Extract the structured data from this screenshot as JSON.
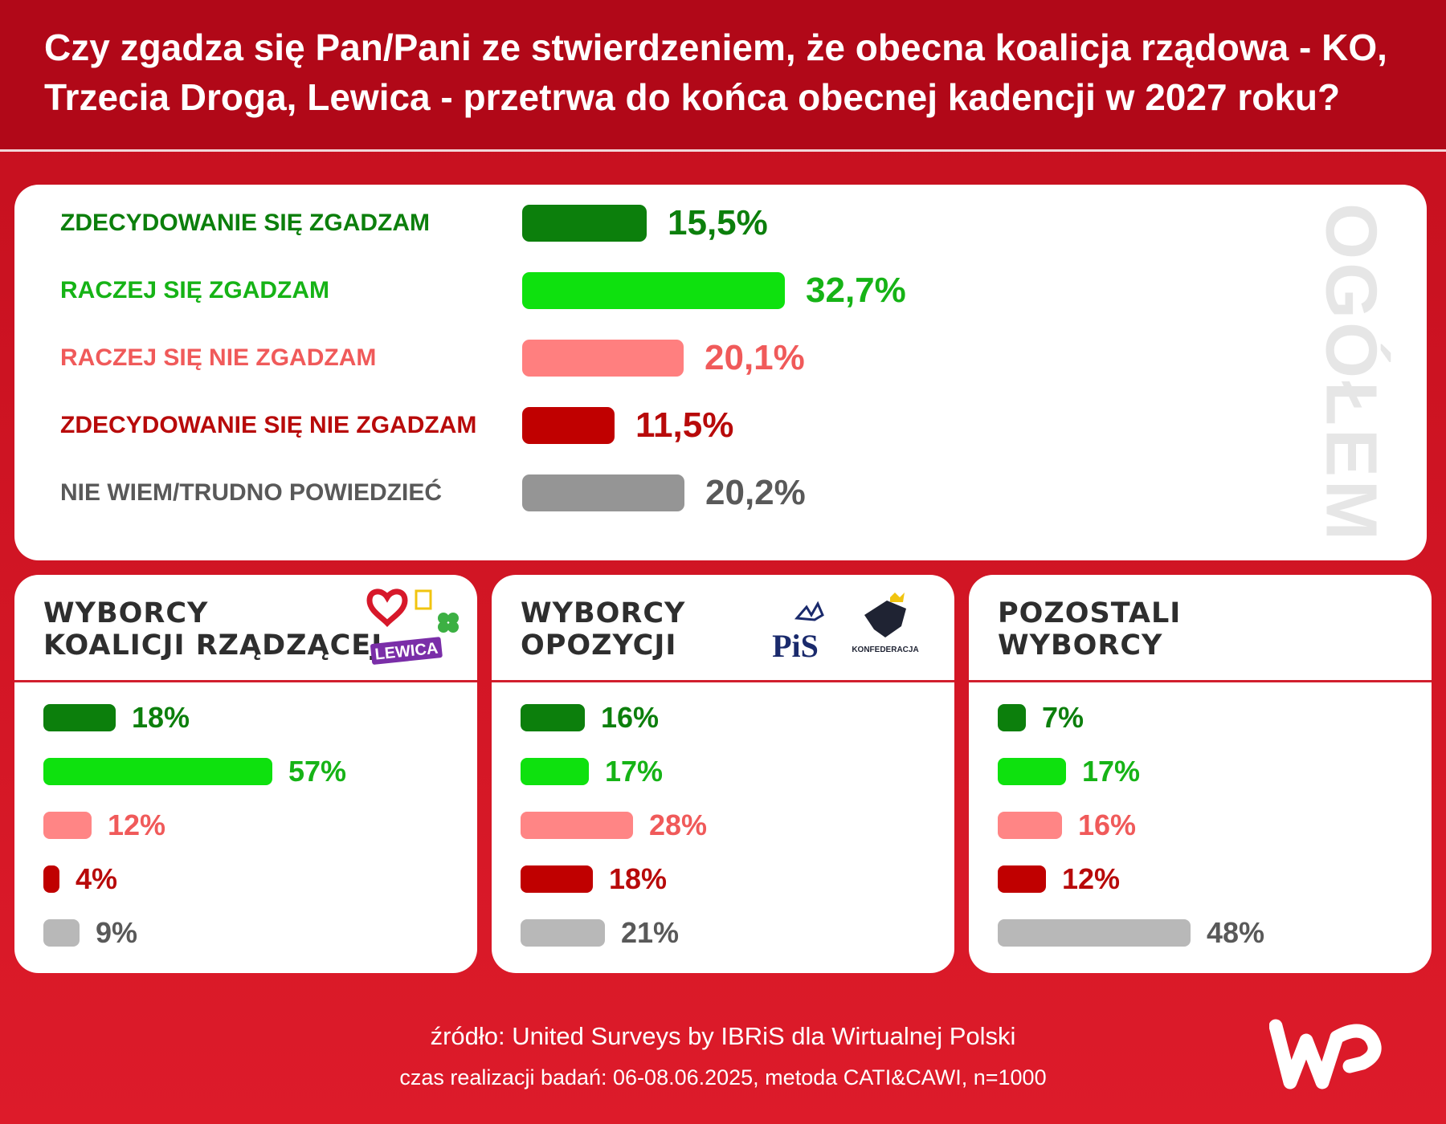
{
  "title": "Czy zgadza się Pan/Pani ze stwierdzeniem, że obecna koalicja rządowa - KO, Trzecia Droga, Lewica - przetrwa do końca obecnej kadencji w 2027 roku?",
  "overall": {
    "side_label": "OGÓŁEM",
    "rows": [
      {
        "label": "ZDECYDOWANIE SIĘ ZGADZAM",
        "value": 15.5,
        "value_label": "15,5%",
        "bar_color": "#0c7f0c",
        "text_color": "#0c7f0c"
      },
      {
        "label": "RACZEJ SIĘ ZGADZAM",
        "value": 32.7,
        "value_label": "32,7%",
        "bar_color": "#0ee10e",
        "text_color": "#16b316"
      },
      {
        "label": "RACZEJ SIĘ NIE ZGADZAM",
        "value": 20.1,
        "value_label": "20,1%",
        "bar_color": "#ff7f7f",
        "text_color": "#f05a5a"
      },
      {
        "label": "ZDECYDOWANIE SIĘ NIE ZGADZAM",
        "value": 11.5,
        "value_label": "11,5%",
        "bar_color": "#c00000",
        "text_color": "#b80a0a"
      },
      {
        "label": "NIE WIEM/TRUDNO POWIEDZIEĆ",
        "value": 20.2,
        "value_label": "20,2%",
        "bar_color": "#959595",
        "text_color": "#595959"
      }
    ]
  },
  "segments": [
    {
      "id": "coalition",
      "title_lines": [
        "WYBORCY",
        "KOALICJI RZĄDZĄCEJ"
      ],
      "logo_text": "LEWICA",
      "values": [
        18,
        57,
        12,
        4,
        9
      ],
      "value_labels": [
        "18%",
        "57%",
        "12%",
        "4%",
        "9%"
      ]
    },
    {
      "id": "opposition",
      "title_lines": [
        "WYBORCY",
        "OPOZYCJI"
      ],
      "logo_text_1": "PiS",
      "logo_text_2": "KONFEDERACJA",
      "values": [
        16,
        17,
        28,
        18,
        21
      ],
      "value_labels": [
        "16%",
        "17%",
        "28%",
        "18%",
        "21%"
      ]
    },
    {
      "id": "others",
      "title_lines": [
        "POZOSTALI",
        "WYBORCY"
      ],
      "values": [
        7,
        17,
        16,
        12,
        48
      ],
      "value_labels": [
        "7%",
        "17%",
        "16%",
        "12%",
        "48%"
      ]
    }
  ],
  "segment_colors": {
    "bars": [
      "#0c7f0c",
      "#0ee10e",
      "#ff8585",
      "#c00000",
      "#b8b8b8"
    ],
    "text": [
      "#0c7f0c",
      "#16b316",
      "#f05a5a",
      "#b80a0a",
      "#595959"
    ]
  },
  "source": {
    "line1": "źródło: United Surveys by IBRiS dla Wirtualnej Polski",
    "line2": "czas realizacji badań: 06-08.06.2025, metoda CATI&CAWI, n=1000"
  },
  "chart_data": [
    {
      "type": "bar",
      "categories": [
        "ZDECYDOWANIE SIĘ ZGADZAM",
        "RACZEJ SIĘ ZGADZAM",
        "RACZEJ SIĘ NIE ZGADZAM",
        "ZDECYDOWANIE SIĘ NIE ZGADZAM",
        "NIE WIEM/TRUDNO POWIEDZIEĆ"
      ],
      "values": [
        15.5,
        32.7,
        20.1,
        11.5,
        20.2
      ],
      "title": "OGÓŁEM"
    },
    {
      "type": "bar",
      "categories": [
        "ZDECYDOWANIE SIĘ ZGADZAM",
        "RACZEJ SIĘ ZGADZAM",
        "RACZEJ SIĘ NIE ZGADZAM",
        "ZDECYDOWANIE SIĘ NIE ZGADZAM",
        "NIE WIEM/TRUDNO POWIEDZIEĆ"
      ],
      "values": [
        18,
        57,
        12,
        4,
        9
      ],
      "title": "WYBORCY KOALICJI RZĄDZĄCEJ"
    },
    {
      "type": "bar",
      "categories": [
        "ZDECYDOWANIE SIĘ ZGADZAM",
        "RACZEJ SIĘ ZGADZAM",
        "RACZEJ SIĘ NIE ZGADZAM",
        "ZDECYDOWANIE SIĘ NIE ZGADZAM",
        "NIE WIEM/TRUDNO POWIEDZIEĆ"
      ],
      "values": [
        16,
        17,
        28,
        18,
        21
      ],
      "title": "WYBORCY OPOZYCJI"
    },
    {
      "type": "bar",
      "categories": [
        "ZDECYDOWANIE SIĘ ZGADZAM",
        "RACZEJ SIĘ ZGADZAM",
        "RACZEJ SIĘ NIE ZGADZAM",
        "ZDECYDOWANIE SIĘ NIE ZGADZAM",
        "NIE WIEM/TRUDNO POWIEDZIEĆ"
      ],
      "values": [
        7,
        17,
        16,
        12,
        48
      ],
      "title": "POZOSTALI WYBORCY"
    }
  ]
}
